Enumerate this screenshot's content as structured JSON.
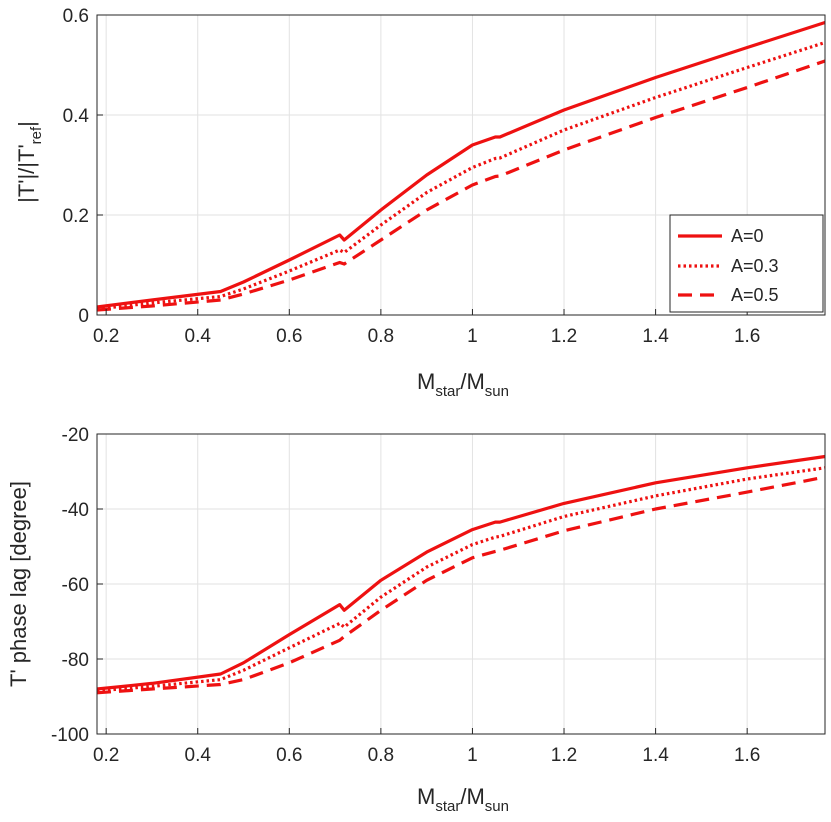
{
  "colors": {
    "series": "#ee1111",
    "axis": "#262626",
    "grid": "#e2e2e2"
  },
  "chart_data": [
    {
      "type": "line",
      "title": "",
      "xlabel_main": "M",
      "xlabel_sub1": "star",
      "xlabel_mid": "/M",
      "xlabel_sub2": "sun",
      "ylabel_main": "|T'|/|T'",
      "ylabel_sub": "ref",
      "ylabel_end": "|",
      "xlim": [
        0.18,
        1.77
      ],
      "ylim": [
        0,
        0.6
      ],
      "xticks": [
        "0.2",
        "0.4",
        "0.6",
        "0.8",
        "1",
        "1.2",
        "1.4",
        "1.6"
      ],
      "xtick_values": [
        0.2,
        0.4,
        0.6,
        0.8,
        1.0,
        1.2,
        1.4,
        1.6
      ],
      "yticks": [
        "0",
        "0.2",
        "0.4",
        "0.6"
      ],
      "ytick_values": [
        0,
        0.2,
        0.4,
        0.6
      ],
      "grid": true,
      "legend_position": "center-right",
      "series": [
        {
          "name": "A=0",
          "style": "solid",
          "x": [
            0.18,
            0.3,
            0.45,
            0.5,
            0.6,
            0.71,
            0.72,
            0.8,
            0.9,
            1.0,
            1.05,
            1.06,
            1.2,
            1.4,
            1.6,
            1.77
          ],
          "y": [
            0.016,
            0.03,
            0.047,
            0.066,
            0.11,
            0.16,
            0.15,
            0.21,
            0.28,
            0.34,
            0.356,
            0.356,
            0.41,
            0.475,
            0.535,
            0.585
          ]
        },
        {
          "name": "A=0.3",
          "style": "dotted",
          "x": [
            0.18,
            0.3,
            0.45,
            0.5,
            0.6,
            0.71,
            0.72,
            0.8,
            0.9,
            1.0,
            1.05,
            1.06,
            1.2,
            1.4,
            1.6,
            1.77
          ],
          "y": [
            0.012,
            0.024,
            0.037,
            0.052,
            0.088,
            0.13,
            0.125,
            0.18,
            0.245,
            0.295,
            0.313,
            0.314,
            0.37,
            0.435,
            0.495,
            0.545
          ]
        },
        {
          "name": "A=0.5",
          "style": "dashed",
          "x": [
            0.18,
            0.3,
            0.45,
            0.5,
            0.6,
            0.71,
            0.72,
            0.8,
            0.9,
            1.0,
            1.05,
            1.06,
            1.2,
            1.4,
            1.6,
            1.77
          ],
          "y": [
            0.01,
            0.018,
            0.03,
            0.042,
            0.07,
            0.105,
            0.102,
            0.15,
            0.21,
            0.26,
            0.277,
            0.278,
            0.33,
            0.395,
            0.455,
            0.508
          ]
        }
      ]
    },
    {
      "type": "line",
      "title": "",
      "xlabel_main": "M",
      "xlabel_sub1": "star",
      "xlabel_mid": "/M",
      "xlabel_sub2": "sun",
      "ylabel": "T' phase lag [degree]",
      "xlim": [
        0.18,
        1.77
      ],
      "ylim": [
        -100,
        -20
      ],
      "xticks": [
        "0.2",
        "0.4",
        "0.6",
        "0.8",
        "1",
        "1.2",
        "1.4",
        "1.6"
      ],
      "xtick_values": [
        0.2,
        0.4,
        0.6,
        0.8,
        1.0,
        1.2,
        1.4,
        1.6
      ],
      "yticks": [
        "-100",
        "-80",
        "-60",
        "-40",
        "-20"
      ],
      "ytick_values": [
        -100,
        -80,
        -60,
        -40,
        -20
      ],
      "grid": true,
      "series": [
        {
          "name": "A=0",
          "style": "solid",
          "x": [
            0.18,
            0.3,
            0.45,
            0.5,
            0.6,
            0.71,
            0.72,
            0.8,
            0.9,
            1.0,
            1.05,
            1.06,
            1.2,
            1.4,
            1.6,
            1.77
          ],
          "y": [
            -88,
            -86.5,
            -84,
            -81,
            -73.5,
            -65.5,
            -67,
            -59,
            -51.5,
            -45.5,
            -43.5,
            -43.5,
            -38.5,
            -33,
            -29,
            -26
          ]
        },
        {
          "name": "A=0.3",
          "style": "dotted",
          "x": [
            0.18,
            0.3,
            0.45,
            0.5,
            0.6,
            0.71,
            0.72,
            0.8,
            0.9,
            1.0,
            1.05,
            1.06,
            1.2,
            1.4,
            1.6,
            1.77
          ],
          "y": [
            -88.5,
            -87.3,
            -85.5,
            -83,
            -77,
            -70.5,
            -71.5,
            -63.5,
            -55.5,
            -49.5,
            -47.5,
            -47.3,
            -42,
            -36.5,
            -32,
            -29
          ]
        },
        {
          "name": "A=0.5",
          "style": "dashed",
          "x": [
            0.18,
            0.3,
            0.45,
            0.5,
            0.6,
            0.71,
            0.72,
            0.8,
            0.9,
            1.0,
            1.05,
            1.06,
            1.2,
            1.4,
            1.6,
            1.77
          ],
          "y": [
            -89,
            -88,
            -86.8,
            -85.5,
            -81,
            -75,
            -74,
            -67,
            -59,
            -53,
            -51.3,
            -51,
            -45.8,
            -40,
            -35.5,
            -31.5
          ]
        }
      ]
    }
  ]
}
